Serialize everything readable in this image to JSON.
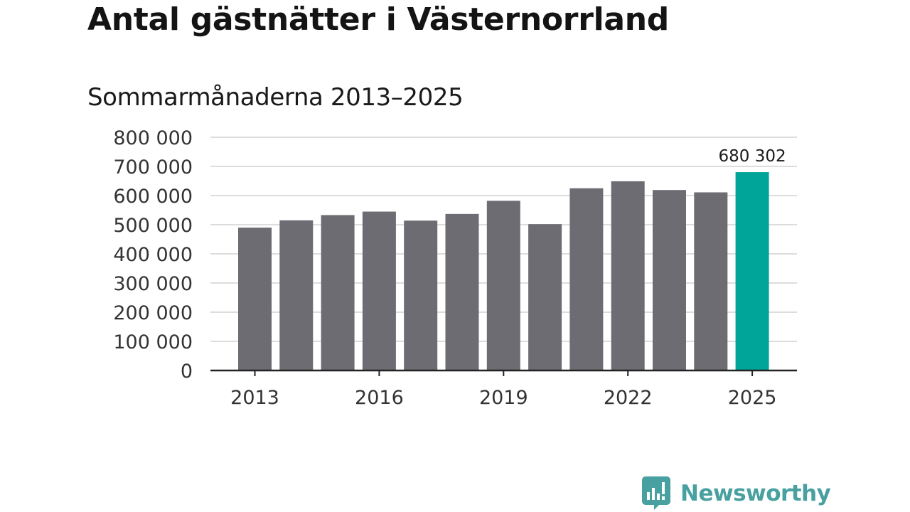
{
  "title": "Antal gästnätter i Västernorrland",
  "subtitle": "Sommarmånaderna 2013–2025",
  "brand": {
    "name": "Newsworthy",
    "color": "#48a0a0",
    "icon": "newsworthy-speech-bubble-chart-icon"
  },
  "colors": {
    "bar": "#6d6c72",
    "highlight": "#00a59a",
    "grid": "#dddddd",
    "axis": "#222222"
  },
  "chart_data": {
    "type": "bar",
    "title": "Antal gästnätter i Västernorrland",
    "subtitle": "Sommarmånaderna 2013–2025",
    "xlabel": "",
    "ylabel": "",
    "categories": [
      "2013",
      "2014",
      "2015",
      "2016",
      "2017",
      "2018",
      "2019",
      "2020",
      "2021",
      "2022",
      "2023",
      "2024",
      "2025"
    ],
    "values": [
      490000,
      515000,
      533000,
      545000,
      514000,
      537000,
      582000,
      502000,
      625000,
      649000,
      619000,
      611000,
      680302
    ],
    "highlight_index": 12,
    "highlight_label": "680 302",
    "ylim": [
      0,
      800000
    ],
    "y_ticks": [
      0,
      100000,
      200000,
      300000,
      400000,
      500000,
      600000,
      700000,
      800000
    ],
    "y_tick_labels": [
      "0",
      "100 000",
      "200 000",
      "300 000",
      "400 000",
      "500 000",
      "600 000",
      "700 000",
      "800 000"
    ],
    "x_tick_labels": [
      "2013",
      "2016",
      "2019",
      "2022",
      "2025"
    ],
    "grid": true,
    "legend": "none"
  }
}
